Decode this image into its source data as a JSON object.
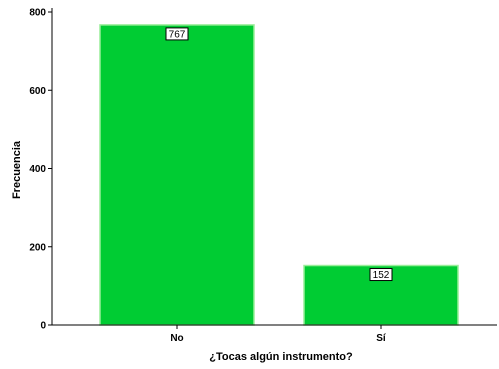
{
  "chart_data": {
    "type": "bar",
    "categories": [
      "No",
      "Sí"
    ],
    "values": [
      767,
      152
    ],
    "data_labels": [
      "767",
      "152"
    ],
    "xlabel": "¿Tocas algún instrumento?",
    "ylabel": "Frecuencia",
    "ylim": [
      0,
      800
    ],
    "yticks": [
      0,
      200,
      400,
      600,
      800
    ],
    "ytick_labels": [
      "0",
      "200",
      "400",
      "600",
      "800"
    ],
    "grid": false,
    "legend": "none",
    "colors": {
      "bar_fill": "#00cc33",
      "bar_stroke": "#99ee99",
      "axis": "#000000"
    }
  }
}
